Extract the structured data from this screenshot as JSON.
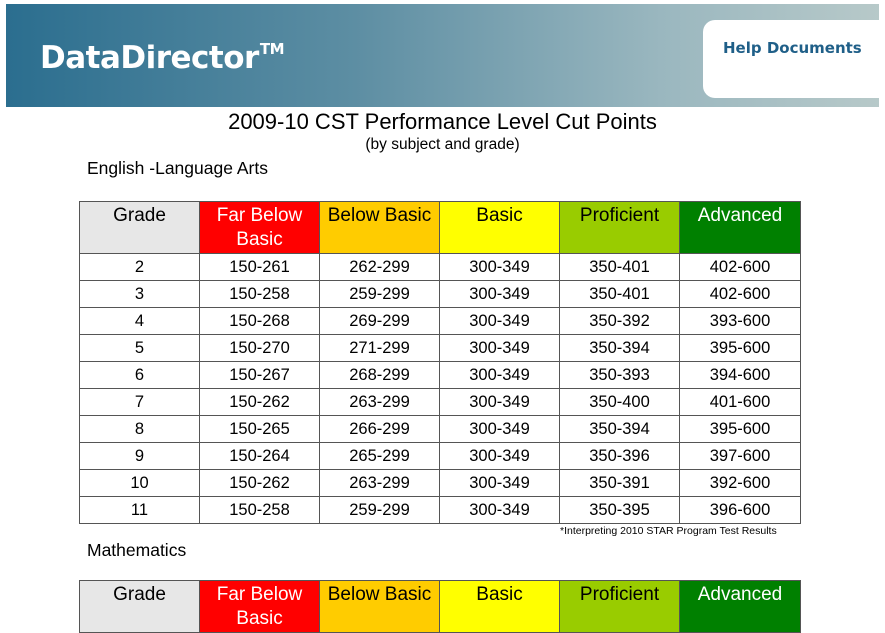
{
  "header": {
    "logo_text": "DataDirector",
    "logo_tm": "TM",
    "help_link": "Help Documents"
  },
  "document": {
    "title": "2009-10 CST Performance Level Cut Points",
    "subtitle": "(by subject and grade)"
  },
  "columns": [
    "Grade",
    "Far Below Basic",
    "Below Basic",
    "Basic",
    "Proficient",
    "Advanced"
  ],
  "colors": {
    "grade_header": "#e7e7e7",
    "far_below_basic": "#ff0000",
    "below_basic": "#ffcc00",
    "basic": "#ffff00",
    "proficient": "#99cc00",
    "advanced": "#008000",
    "banner_start": "#2b6e8f",
    "banner_end": "#b7c9c9",
    "help_link": "#1f5f88"
  },
  "ela": {
    "label": "English -Language Arts",
    "rows": [
      [
        "2",
        "150-261",
        "262-299",
        "300-349",
        "350-401",
        "402-600"
      ],
      [
        "3",
        "150-258",
        "259-299",
        "300-349",
        "350-401",
        "402-600"
      ],
      [
        "4",
        "150-268",
        "269-299",
        "300-349",
        "350-392",
        "393-600"
      ],
      [
        "5",
        "150-270",
        "271-299",
        "300-349",
        "350-394",
        "395-600"
      ],
      [
        "6",
        "150-267",
        "268-299",
        "300-349",
        "350-393",
        "394-600"
      ],
      [
        "7",
        "150-262",
        "263-299",
        "300-349",
        "350-400",
        "401-600"
      ],
      [
        "8",
        "150-265",
        "266-299",
        "300-349",
        "350-394",
        "395-600"
      ],
      [
        "9",
        "150-264",
        "265-299",
        "300-349",
        "350-396",
        "397-600"
      ],
      [
        "10",
        "150-262",
        "263-299",
        "300-349",
        "350-391",
        "392-600"
      ],
      [
        "11",
        "150-258",
        "259-299",
        "300-349",
        "350-395",
        "396-600"
      ]
    ]
  },
  "footnote": "*Interpreting 2010 STAR Program Test Results",
  "math": {
    "label": "Mathematics",
    "rows": []
  }
}
